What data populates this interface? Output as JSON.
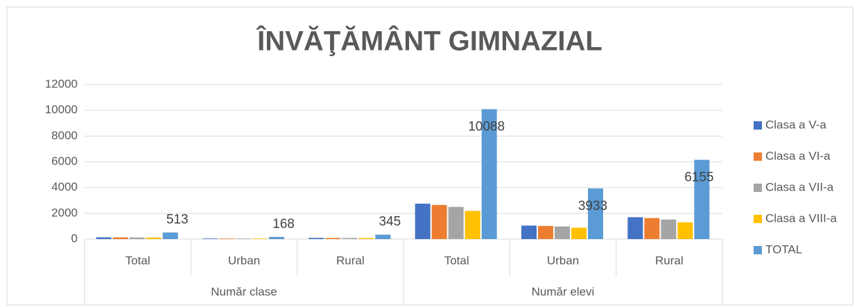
{
  "chart_data": {
    "type": "bar",
    "title": "ÎNVĂŢĂMÂNT GIMNAZIAL",
    "groups": [
      {
        "name": "Număr clase",
        "categories": [
          "Total",
          "Urban",
          "Rural"
        ]
      },
      {
        "name": "Număr elevi",
        "categories": [
          "Total",
          "Urban",
          "Rural"
        ]
      }
    ],
    "series": [
      {
        "name": "Clasa a V-a",
        "color": "#4472c4",
        "values": [
          135,
          44,
          91,
          2750,
          1050,
          1700
        ]
      },
      {
        "name": "Clasa a VI-a",
        "color": "#ed7d31",
        "values": [
          132,
          43,
          89,
          2650,
          1020,
          1630
        ]
      },
      {
        "name": "Clasa a VII-a",
        "color": "#a5a5a5",
        "values": [
          126,
          41,
          85,
          2500,
          980,
          1520
        ]
      },
      {
        "name": "Clasa a VIII-a",
        "color": "#ffc000",
        "values": [
          120,
          40,
          80,
          2188,
          883,
          1305
        ]
      },
      {
        "name": "TOTAL",
        "color": "#5b9bd5",
        "values": [
          513,
          168,
          345,
          10088,
          3933,
          6155
        ],
        "show_labels": true
      }
    ],
    "ylim": [
      0,
      12000
    ],
    "yticks": [
      0,
      2000,
      4000,
      6000,
      8000,
      10000,
      12000
    ],
    "grid": true,
    "legend": "right"
  }
}
